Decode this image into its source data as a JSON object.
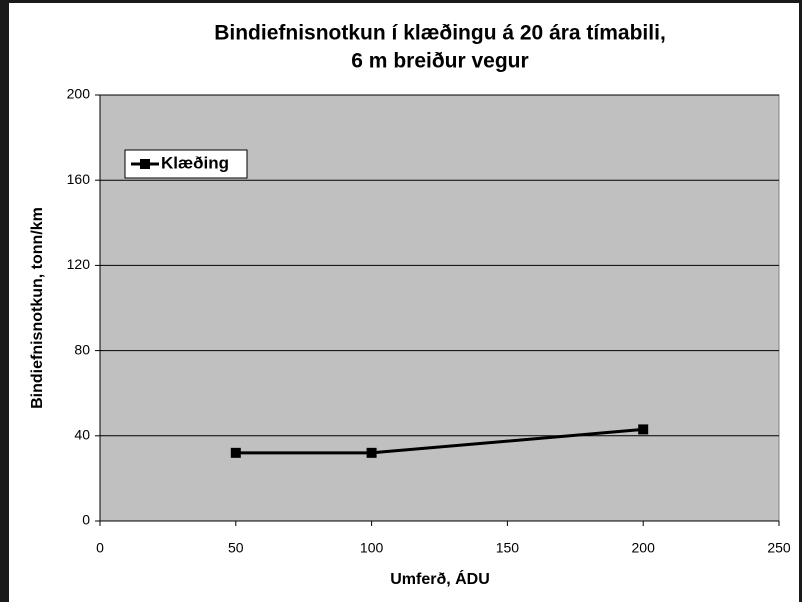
{
  "chart_data": {
    "type": "line",
    "title_lines": [
      "Bindiefnisnotkun í klæðingu á 20 ára tímabili,",
      "6 m breiður vegur"
    ],
    "x_label": "Umferð, ÁDU",
    "y_label": "Bindiefnisnotkun, tonn/km",
    "x": [
      50,
      100,
      200
    ],
    "series": [
      {
        "name": "Klæðing",
        "color": "#000000",
        "values": [
          32,
          32,
          43
        ]
      }
    ],
    "xlim": [
      0,
      250
    ],
    "xticks": [
      0,
      50,
      100,
      150,
      200,
      250
    ],
    "ylim": [
      0,
      200
    ],
    "yticks": [
      0,
      40,
      80,
      120,
      160,
      200
    ],
    "grid": true,
    "legend": "upper left"
  }
}
